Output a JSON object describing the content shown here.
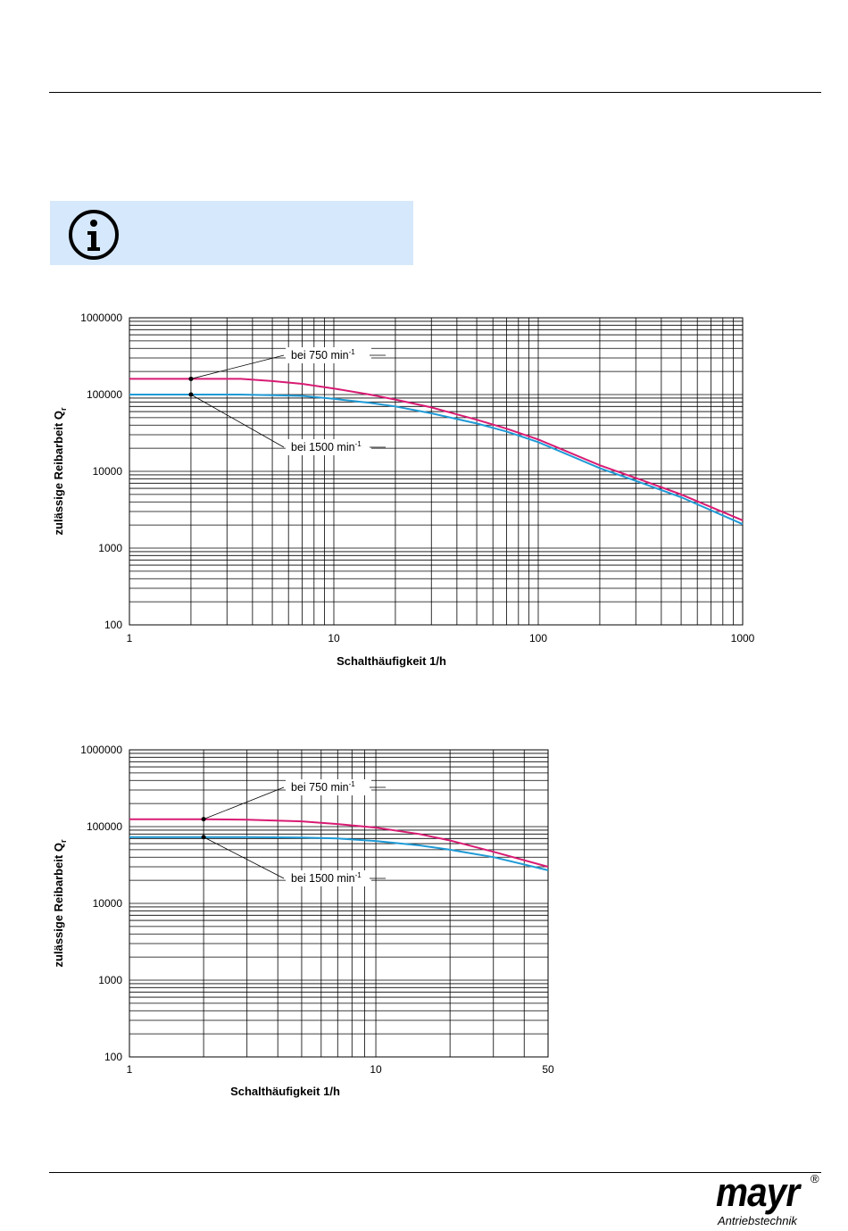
{
  "colors": {
    "series_750": "#d81b73",
    "series_1500": "#1f9ad6",
    "info_bg": "#d6e8fb"
  },
  "info": {
    "icon": "info-icon"
  },
  "logo": {
    "name": "mayr",
    "registered": "®",
    "subtitle": "Antriebstechnik"
  },
  "chart_data": [
    {
      "type": "line",
      "x_scale": "log",
      "y_scale": "log",
      "xlim": [
        1,
        1000
      ],
      "ylim": [
        100,
        1000000
      ],
      "grid": true,
      "xlabel": "Schalthäufigkeit 1/h",
      "ylabel_main": "zulässige Reibarbeit Q",
      "ylabel_sub": "r",
      "xticks": [
        1,
        10,
        100,
        1000
      ],
      "xtick_labels": [
        "1",
        "10",
        "100",
        "1000"
      ],
      "yticks": [
        100,
        1000,
        10000,
        100000,
        1000000
      ],
      "ytick_labels": [
        "100",
        "1000",
        "10000",
        "100000",
        "1000000"
      ],
      "annotations": [
        {
          "text": "bei 750 min",
          "sup": "-1",
          "series": 0,
          "x": 2
        },
        {
          "text": "bei 1500 min",
          "sup": "-1",
          "series": 1,
          "x": 2
        }
      ],
      "series": [
        {
          "name": "bei 750 min-1",
          "x": [
            1,
            2,
            3.5,
            5,
            7,
            10,
            15,
            20,
            30,
            50,
            70,
            100,
            200,
            300,
            500,
            1000
          ],
          "y": [
            160000,
            160000,
            160000,
            150000,
            138000,
            120000,
            100000,
            86000,
            68000,
            47000,
            36000,
            26000,
            12000,
            8200,
            5000,
            2300
          ]
        },
        {
          "name": "bei 1500 min-1",
          "x": [
            1,
            2,
            3.5,
            5,
            7,
            10,
            15,
            20,
            30,
            50,
            70,
            100,
            200,
            300,
            500,
            1000
          ],
          "y": [
            100000,
            100000,
            100000,
            98000,
            96000,
            88000,
            78000,
            70000,
            57000,
            42000,
            33000,
            24000,
            11000,
            7500,
            4600,
            2050
          ]
        }
      ]
    },
    {
      "type": "line",
      "x_scale": "log",
      "y_scale": "log",
      "xlim": [
        1,
        50
      ],
      "ylim": [
        100,
        1000000
      ],
      "grid": true,
      "xlabel": "Schalthäufigkeit 1/h",
      "ylabel_main": "zulässige Reibarbeit Q",
      "ylabel_sub": "r",
      "xticks": [
        1,
        10,
        50
      ],
      "xtick_labels": [
        "1",
        "10",
        "50"
      ],
      "yticks": [
        100,
        1000,
        10000,
        100000,
        1000000
      ],
      "ytick_labels": [
        "100",
        "1000",
        "10000",
        "100000",
        "1000000"
      ],
      "annotations": [
        {
          "text": "bei 750 min",
          "sup": "-1",
          "series": 0,
          "x": 2
        },
        {
          "text": "bei 1500 min",
          "sup": "-1",
          "series": 1,
          "x": 2
        }
      ],
      "series": [
        {
          "name": "bei 750 min-1",
          "x": [
            1,
            2,
            3,
            5,
            7,
            10,
            15,
            20,
            30,
            50
          ],
          "y": [
            125000,
            125000,
            123000,
            117000,
            108000,
            97000,
            80000,
            66000,
            47000,
            30000
          ]
        },
        {
          "name": "bei 1500 min-1",
          "x": [
            1,
            2,
            3,
            5,
            7,
            10,
            15,
            20,
            30,
            50
          ],
          "y": [
            73000,
            73000,
            73000,
            72000,
            70000,
            65000,
            57000,
            50000,
            40000,
            27000
          ]
        }
      ]
    }
  ]
}
